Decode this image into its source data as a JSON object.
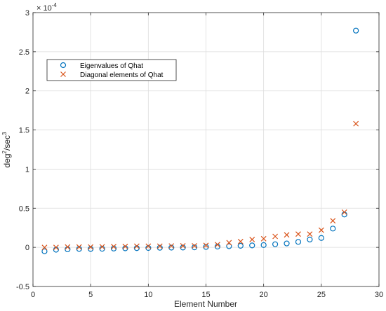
{
  "chart_data": {
    "type": "scatter",
    "xlabel": "Element Number",
    "ylabel_base": "deg",
    "ylabel_sup1": "2",
    "ylabel_mid": "/sec",
    "ylabel_sup2": "3",
    "y_exponent_base": "× 10",
    "y_exponent_power": "-4",
    "xlim": [
      0,
      30
    ],
    "ylim": [
      -0.5,
      3
    ],
    "xticks": [
      0,
      5,
      10,
      15,
      20,
      25,
      30
    ],
    "yticks": [
      -0.5,
      0,
      0.5,
      1,
      1.5,
      2,
      2.5,
      3
    ],
    "xtick_labels": [
      "0",
      "5",
      "10",
      "15",
      "20",
      "25",
      "30"
    ],
    "ytick_labels": [
      "-0.5",
      "0",
      "0.5",
      "1",
      "1.5",
      "2",
      "2.5",
      "3"
    ],
    "grid": true,
    "legend_position": "upper-left",
    "series": [
      {
        "name": "Eigenvalues of Qhat",
        "marker": "circle",
        "color": "#0072BD",
        "x": [
          1,
          2,
          3,
          4,
          5,
          6,
          7,
          8,
          9,
          10,
          11,
          12,
          13,
          14,
          15,
          16,
          17,
          18,
          19,
          20,
          21,
          22,
          23,
          24,
          25,
          26,
          27,
          28
        ],
        "y": [
          -0.05,
          -0.03,
          -0.025,
          -0.02,
          -0.02,
          -0.018,
          -0.015,
          -0.012,
          -0.01,
          -0.008,
          -0.005,
          -0.003,
          -0.002,
          0.0,
          0.005,
          0.01,
          0.015,
          0.02,
          0.025,
          0.03,
          0.04,
          0.05,
          0.07,
          0.1,
          0.12,
          0.24,
          0.42,
          2.77
        ]
      },
      {
        "name": "Diagonal elements of Qhat",
        "marker": "x",
        "color": "#D95319",
        "x": [
          1,
          2,
          3,
          4,
          5,
          6,
          7,
          8,
          9,
          10,
          11,
          12,
          13,
          14,
          15,
          16,
          17,
          18,
          19,
          20,
          21,
          22,
          23,
          24,
          25,
          26,
          27,
          28
        ],
        "y": [
          0.0,
          0.0,
          0.005,
          0.005,
          0.005,
          0.008,
          0.01,
          0.012,
          0.015,
          0.015,
          0.015,
          0.018,
          0.02,
          0.02,
          0.025,
          0.035,
          0.06,
          0.075,
          0.1,
          0.11,
          0.14,
          0.16,
          0.17,
          0.17,
          0.22,
          0.34,
          0.45,
          1.58
        ]
      }
    ]
  }
}
